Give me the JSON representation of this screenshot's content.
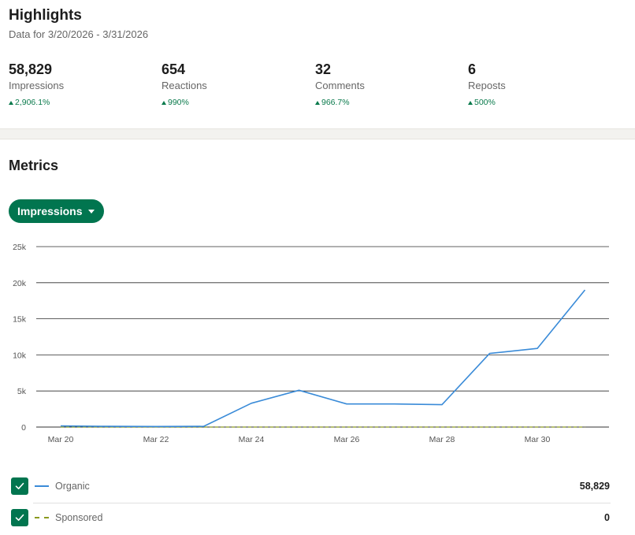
{
  "highlights": {
    "title": "Highlights",
    "subtitle": "Data for 3/20/2026 - 3/31/2026",
    "kpis": [
      {
        "value": "58,829",
        "label": "Impressions",
        "delta": "2,906.1%"
      },
      {
        "value": "654",
        "label": "Reactions",
        "delta": "990%"
      },
      {
        "value": "32",
        "label": "Comments",
        "delta": "966.7%"
      },
      {
        "value": "6",
        "label": "Reposts",
        "delta": "500%"
      }
    ]
  },
  "metrics": {
    "title": "Metrics",
    "dropdown_label": "Impressions"
  },
  "colors": {
    "accent": "#01754f",
    "positive": "#0a7a4c",
    "organic_line": "#3a8bd8",
    "sponsored_line": "#8a9a1e"
  },
  "chart_data": {
    "type": "line",
    "x": [
      "Mar 20",
      "Mar 21",
      "Mar 22",
      "Mar 23",
      "Mar 24",
      "Mar 25",
      "Mar 26",
      "Mar 27",
      "Mar 28",
      "Mar 29",
      "Mar 30",
      "Mar 31"
    ],
    "x_tick_labels": [
      "Mar 20",
      "Mar 22",
      "Mar 24",
      "Mar 26",
      "Mar 28",
      "Mar 30"
    ],
    "y_ticks": [
      0,
      5000,
      10000,
      15000,
      20000,
      25000
    ],
    "y_tick_labels": [
      "0",
      "5k",
      "10k",
      "15k",
      "20k",
      "25k"
    ],
    "ylim": [
      0,
      25000
    ],
    "grid": true,
    "series": [
      {
        "name": "Organic",
        "style": "solid",
        "values": [
          150,
          100,
          80,
          100,
          3300,
          5100,
          3200,
          3200,
          3100,
          10200,
          10900,
          19000
        ]
      },
      {
        "name": "Sponsored",
        "style": "dashed",
        "values": [
          0,
          0,
          0,
          0,
          0,
          0,
          0,
          0,
          0,
          0,
          0,
          0
        ]
      }
    ]
  },
  "legend": [
    {
      "name": "Organic",
      "total": "58,829",
      "checked": true
    },
    {
      "name": "Sponsored",
      "total": "0",
      "checked": true
    }
  ]
}
